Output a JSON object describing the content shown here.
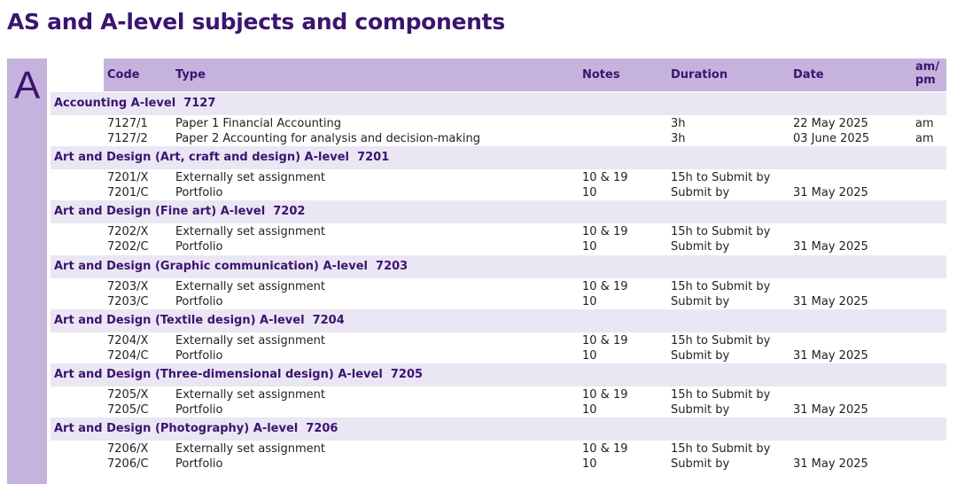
{
  "title": "AS and A-level subjects and components",
  "letter": "A",
  "headers": {
    "code": "Code",
    "type": "Type",
    "notes": "Notes",
    "duration": "Duration",
    "date": "Date",
    "ampm_1": "am/",
    "ampm_2": "pm"
  },
  "sections": [
    {
      "heading": "Accounting A-level  7127",
      "rows": [
        {
          "code": "7127/1",
          "type": "Paper 1 Financial Accounting",
          "notes": "",
          "duration": "3h",
          "date": "22 May 2025",
          "ampm": "am"
        },
        {
          "code": "7127/2",
          "type": "Paper 2 Accounting for analysis and decision-making",
          "notes": "",
          "duration": "3h",
          "date": "03 June 2025",
          "ampm": "am"
        }
      ]
    },
    {
      "heading": "Art and Design (Art, craft and design) A-level  7201",
      "rows": [
        {
          "code": "7201/X",
          "type": "Externally set assignment",
          "notes": "10 & 19",
          "duration": "15h to Submit by",
          "date": "",
          "ampm": ""
        },
        {
          "code": "7201/C",
          "type": "Portfolio",
          "notes": "10",
          "duration": "Submit by",
          "date": "31 May 2025",
          "ampm": ""
        }
      ]
    },
    {
      "heading": "Art and Design (Fine art) A-level  7202",
      "rows": [
        {
          "code": "7202/X",
          "type": "Externally set assignment",
          "notes": "10 & 19",
          "duration": "15h to Submit by",
          "date": "",
          "ampm": ""
        },
        {
          "code": "7202/C",
          "type": "Portfolio",
          "notes": "10",
          "duration": "Submit by",
          "date": "31 May 2025",
          "ampm": ""
        }
      ]
    },
    {
      "heading": "Art and Design (Graphic communication) A-level  7203",
      "rows": [
        {
          "code": "7203/X",
          "type": "Externally set assignment",
          "notes": "10 & 19",
          "duration": "15h to Submit by",
          "date": "",
          "ampm": ""
        },
        {
          "code": "7203/C",
          "type": "Portfolio",
          "notes": "10",
          "duration": "Submit by",
          "date": "31 May 2025",
          "ampm": ""
        }
      ]
    },
    {
      "heading": "Art and Design (Textile design) A-level  7204",
      "rows": [
        {
          "code": "7204/X",
          "type": "Externally set assignment",
          "notes": "10 & 19",
          "duration": "15h to Submit by",
          "date": "",
          "ampm": ""
        },
        {
          "code": "7204/C",
          "type": "Portfolio",
          "notes": "10",
          "duration": "Submit by",
          "date": "31 May 2025",
          "ampm": ""
        }
      ]
    },
    {
      "heading": "Art and Design (Three-dimensional design) A-level  7205",
      "rows": [
        {
          "code": "7205/X",
          "type": "Externally set assignment",
          "notes": "10 & 19",
          "duration": "15h to Submit by",
          "date": "",
          "ampm": ""
        },
        {
          "code": "7205/C",
          "type": "Portfolio",
          "notes": "10",
          "duration": "Submit by",
          "date": "31 May 2025",
          "ampm": ""
        }
      ]
    },
    {
      "heading": "Art and Design (Photography) A-level  7206",
      "rows": [
        {
          "code": "7206/X",
          "type": "Externally set assignment",
          "notes": "10 & 19",
          "duration": "15h to Submit by",
          "date": "",
          "ampm": ""
        },
        {
          "code": "7206/C",
          "type": "Portfolio",
          "notes": "10",
          "duration": "Submit by",
          "date": "31 May 2025",
          "ampm": ""
        }
      ]
    }
  ]
}
